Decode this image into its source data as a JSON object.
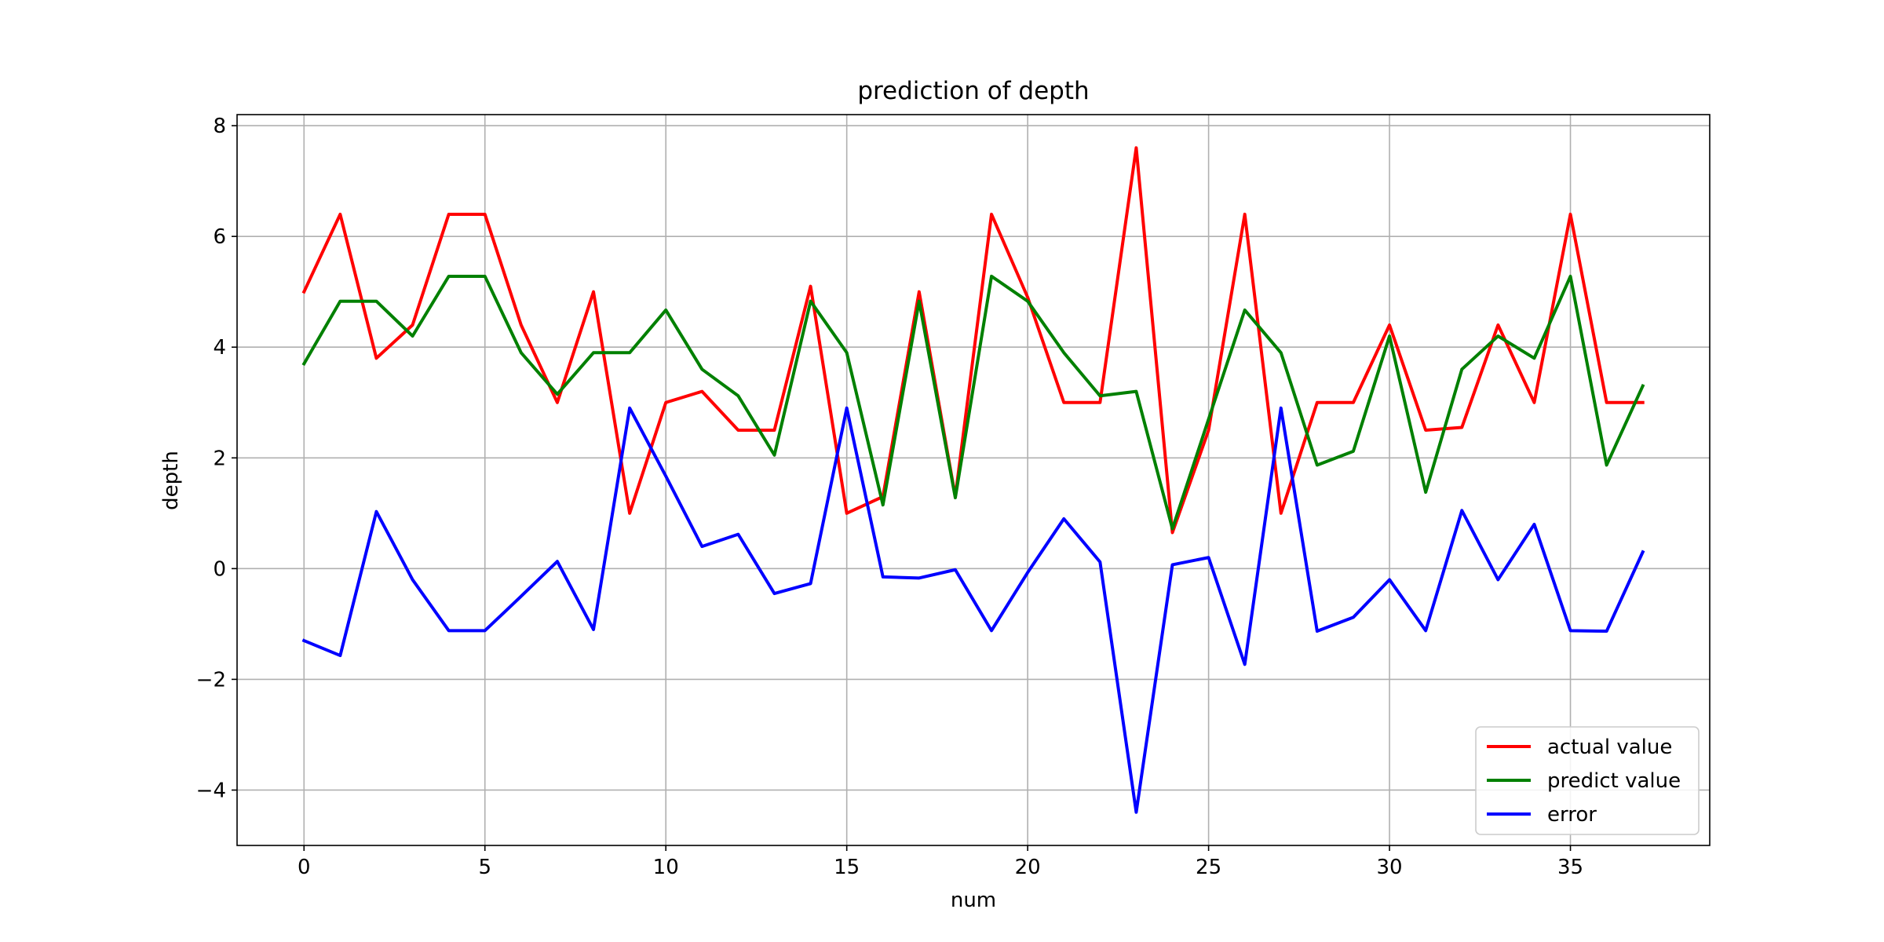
{
  "chart_data": {
    "type": "line",
    "title": "prediction of depth",
    "xlabel": "num",
    "ylabel": "depth",
    "xlim": [
      -1.85,
      38.85
    ],
    "ylim": [
      -5.0,
      8.2
    ],
    "xticks": [
      0,
      5,
      10,
      15,
      20,
      25,
      30,
      35
    ],
    "yticks": [
      -4,
      -2,
      0,
      2,
      4,
      6,
      8
    ],
    "ytick_labels": [
      "−4",
      "−2",
      "0",
      "2",
      "4",
      "6",
      "8"
    ],
    "grid": true,
    "legend_position": "lower right",
    "x": [
      0,
      1,
      2,
      3,
      4,
      5,
      6,
      7,
      8,
      9,
      10,
      11,
      12,
      13,
      14,
      15,
      16,
      17,
      18,
      19,
      20,
      21,
      22,
      23,
      24,
      25,
      26,
      27,
      28,
      29,
      30,
      31,
      32,
      33,
      34,
      35,
      36,
      37
    ],
    "series": [
      {
        "name": "actual value",
        "color": "#ff0000",
        "values": [
          5.0,
          6.4,
          3.8,
          4.4,
          6.4,
          6.4,
          4.4,
          3.0,
          5.0,
          1.0,
          3.0,
          3.2,
          2.5,
          2.5,
          5.1,
          1.0,
          1.3,
          5.0,
          1.3,
          6.4,
          4.9,
          3.0,
          3.0,
          7.6,
          0.65,
          2.5,
          6.4,
          1.0,
          3.0,
          3.0,
          4.4,
          2.5,
          2.55,
          4.4,
          3.0,
          6.4,
          3.0,
          3.0
        ]
      },
      {
        "name": "predict value",
        "color": "#008000",
        "values": [
          3.7,
          4.83,
          4.83,
          4.2,
          5.28,
          5.28,
          3.9,
          3.15,
          3.9,
          3.9,
          4.67,
          3.6,
          3.12,
          2.05,
          4.83,
          3.9,
          1.15,
          4.83,
          1.28,
          5.28,
          4.83,
          3.9,
          3.12,
          3.2,
          0.72,
          2.7,
          4.67,
          3.9,
          1.87,
          2.12,
          4.2,
          1.38,
          3.6,
          4.2,
          3.8,
          5.28,
          1.87,
          3.3
        ]
      },
      {
        "name": "error",
        "color": "#0000ff",
        "values": [
          -1.3,
          -1.57,
          1.03,
          -0.2,
          -1.12,
          -1.12,
          -0.5,
          0.13,
          -1.1,
          2.9,
          1.67,
          0.4,
          0.62,
          -0.45,
          -0.27,
          2.9,
          -0.15,
          -0.17,
          -0.02,
          -1.12,
          -0.07,
          0.9,
          0.12,
          -4.4,
          0.07,
          0.2,
          -1.73,
          2.9,
          -1.13,
          -0.88,
          -0.2,
          -1.12,
          1.05,
          -0.2,
          0.8,
          -1.12,
          -1.13,
          0.3
        ]
      }
    ]
  }
}
